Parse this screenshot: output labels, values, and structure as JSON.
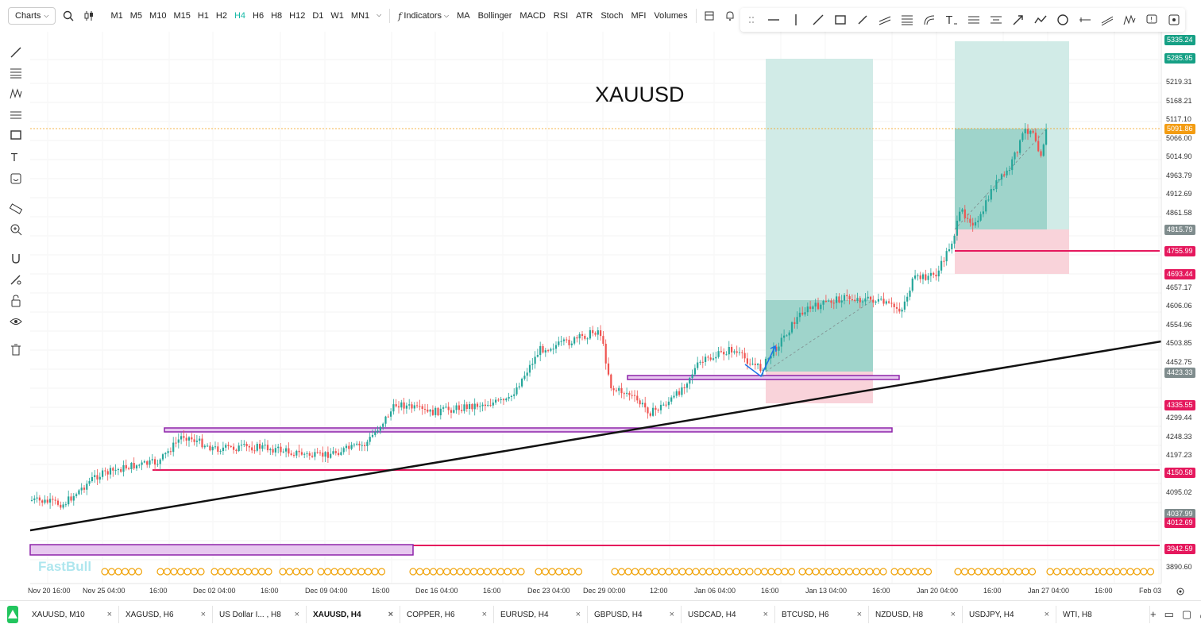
{
  "toolbar": {
    "charts_label": "Charts",
    "timeframes": [
      "M1",
      "M5",
      "M10",
      "M15",
      "H1",
      "H2",
      "H4",
      "H6",
      "H8",
      "H12",
      "D1",
      "W1",
      "MN1"
    ],
    "active_timeframe": "H4",
    "indicators_label": "Indicators",
    "indicators": [
      "MA",
      "Bollinger",
      "MACD",
      "RSI",
      "ATR",
      "Stoch",
      "MFI",
      "Volumes"
    ]
  },
  "chart": {
    "symbol_title": "XAUUSD",
    "watermark": "FastBull",
    "current_price": "5091.86",
    "price_ticks": [
      "5219.31",
      "5168.21",
      "5117.10",
      "5066.00",
      "5014.90",
      "4963.79",
      "4912.69",
      "4861.58",
      "4657.17",
      "4606.06",
      "4554.96",
      "4503.85",
      "4452.75",
      "4299.44",
      "4248.33",
      "4197.23",
      "4095.02",
      "3890.60"
    ],
    "price_labels": [
      {
        "value": "5335.24",
        "color": "#16a085"
      },
      {
        "value": "5285.95",
        "color": "#16a085"
      },
      {
        "value": "5091.86",
        "color": "#f39c12"
      },
      {
        "value": "4815.79",
        "color": "#7f8c8d"
      },
      {
        "value": "4755.99",
        "color": "#e5185d"
      },
      {
        "value": "4693.44",
        "color": "#e5185d"
      },
      {
        "value": "4423.33",
        "color": "#7f8c8d"
      },
      {
        "value": "4335.55",
        "color": "#e5185d"
      },
      {
        "value": "4150.58",
        "color": "#e5185d"
      },
      {
        "value": "4037.99",
        "color": "#7f8c8d"
      },
      {
        "value": "4012.69",
        "color": "#e5185d"
      },
      {
        "value": "3942.59",
        "color": "#e5185d"
      }
    ],
    "date_ticks": [
      "Nov 20 16:00",
      "Nov 25 04:00",
      "16:00",
      "Dec 02 04:00",
      "16:00",
      "Dec 09 04:00",
      "16:00",
      "Dec 16 04:00",
      "16:00",
      "Dec 23 04:00",
      "Dec 29 00:00",
      "12:00",
      "Jan 06 04:00",
      "16:00",
      "Jan 13 04:00",
      "16:00",
      "Jan 20 04:00",
      "16:00",
      "Jan 27 04:00",
      "16:00",
      "Feb 03"
    ]
  },
  "tabs": [
    {
      "label": "XAUUSD, M10"
    },
    {
      "label": "XAGUSD, H6"
    },
    {
      "label": "US Dollar I... , H8"
    },
    {
      "label": "XAUUSD, H4",
      "active": true
    },
    {
      "label": "COPPER, H6"
    },
    {
      "label": "EURUSD, H4"
    },
    {
      "label": "GBPUSD, H4"
    },
    {
      "label": "USDCAD, H4"
    },
    {
      "label": "BTCUSD, H6"
    },
    {
      "label": "NZDUSD, H8"
    },
    {
      "label": "USDJPY, H4"
    },
    {
      "label": "WTI, H8"
    }
  ],
  "colors": {
    "accent": "#14b8a6",
    "bull": "#26a69a",
    "bear": "#ef5350",
    "support": "#e5185d",
    "zone": "#8e24aa"
  }
}
